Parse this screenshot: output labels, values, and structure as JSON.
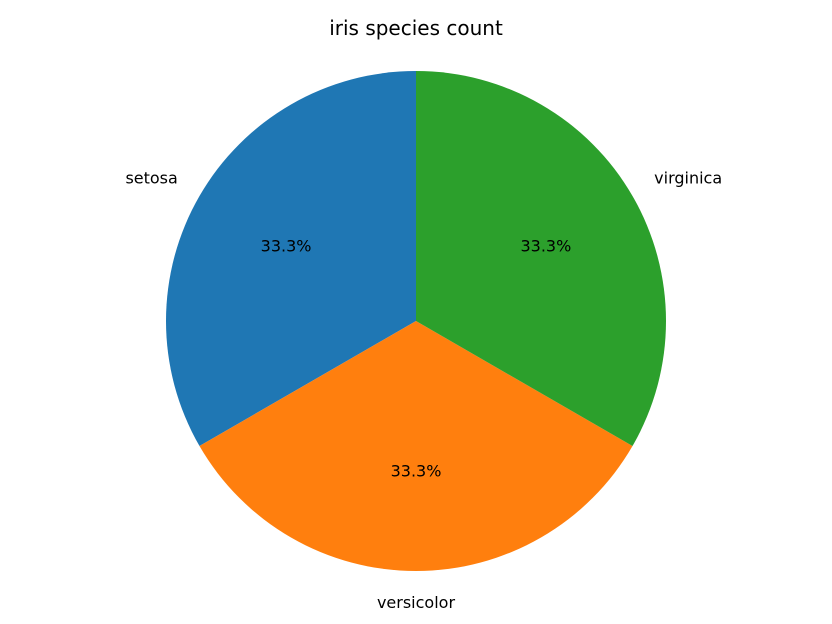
{
  "chart_data": {
    "type": "pie",
    "title": "iris species count",
    "slices": [
      {
        "label": "setosa",
        "value": 50,
        "percent_label": "33.3%",
        "color": "#1f77b4"
      },
      {
        "label": "versicolor",
        "value": 50,
        "percent_label": "33.3%",
        "color": "#ff7f0e"
      },
      {
        "label": "virginica",
        "value": 50,
        "percent_label": "33.3%",
        "color": "#2ca02c"
      }
    ],
    "start_angle_deg": 90,
    "direction": "counterclockwise"
  }
}
